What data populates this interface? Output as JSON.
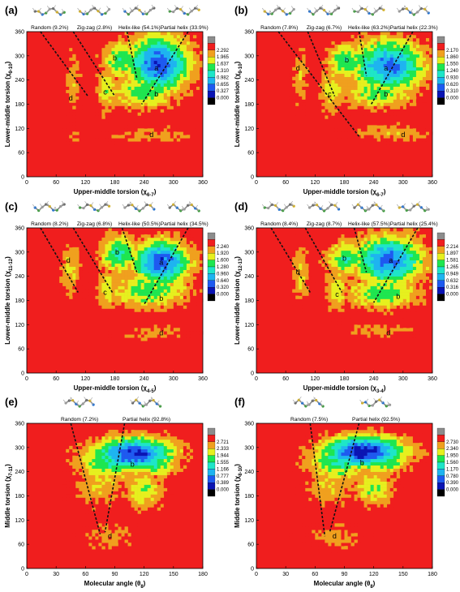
{
  "figure": {
    "panel_labels": [
      "(a)",
      "(b)",
      "(c)",
      "(d)",
      "(e)",
      "(f)"
    ]
  },
  "colors": {
    "level_colors": [
      "#000000",
      "#0a14b4",
      "#1e5af0",
      "#1eb4f0",
      "#1ee6c8",
      "#1ee650",
      "#e6f01e",
      "#f0a01e",
      "#f01e1e",
      "#8c8c8c"
    ],
    "plot_background": "#f01e1e",
    "divider": "#111111"
  },
  "chart_data": [
    {
      "panel": "(a)",
      "type": "heatmap",
      "xlabel": "Upper-middle torsion (χ6-7)",
      "ylabel": "Lower-middle torsion (χ9-10)",
      "xlim": [
        0,
        360
      ],
      "ylim": [
        0,
        360
      ],
      "xticks": [
        0,
        60,
        120,
        180,
        240,
        300,
        360
      ],
      "yticks": [
        0,
        60,
        120,
        180,
        240,
        300,
        360
      ],
      "colorbar": [
        "2.292",
        "1.965",
        "1.637",
        "1.310",
        "0.982",
        "0.655",
        "0.327",
        "0.000"
      ],
      "categories": [
        "Random (9.2%)",
        "Zig-zag (2.8%)",
        "Helix-like (54.1%)",
        "Partial helix (33.9%)"
      ],
      "regions": [
        {
          "label": "a",
          "x": 265,
          "y": 270
        },
        {
          "label": "b",
          "x": 180,
          "y": 295
        },
        {
          "label": "b",
          "x": 265,
          "y": 205
        },
        {
          "label": "c",
          "x": 160,
          "y": 210
        },
        {
          "label": "d",
          "x": 90,
          "y": 195
        },
        {
          "label": "d",
          "x": 255,
          "y": 105
        }
      ],
      "blobs": [
        {
          "x": 270,
          "y": 280,
          "rx": 65,
          "ry": 70,
          "h": 2.2
        },
        {
          "x": 195,
          "y": 290,
          "rx": 40,
          "ry": 45,
          "h": 1.3
        },
        {
          "x": 240,
          "y": 210,
          "rx": 65,
          "ry": 40,
          "h": 1.2
        },
        {
          "x": 165,
          "y": 220,
          "rx": 22,
          "ry": 60,
          "h": 0.9
        },
        {
          "x": 95,
          "y": 235,
          "rx": 14,
          "ry": 80,
          "h": 0.6
        },
        {
          "x": 255,
          "y": 105,
          "rx": 90,
          "ry": 20,
          "h": 0.5
        },
        {
          "x": 95,
          "y": 105,
          "rx": 16,
          "ry": 25,
          "h": 0.4
        }
      ],
      "dividers": [
        [
          [
            28,
            360
          ],
          [
            125,
            200
          ]
        ],
        [
          [
            95,
            360
          ],
          [
            180,
            200
          ]
        ],
        [
          [
            205,
            360
          ],
          [
            225,
            245
          ]
        ],
        [
          [
            330,
            360
          ],
          [
            235,
            180
          ]
        ]
      ]
    },
    {
      "panel": "(b)",
      "type": "heatmap",
      "xlabel": "Upper-middle torsion (χ6-7)",
      "ylabel": "Lower-middle torsion (χ9-10)",
      "xlim": [
        0,
        360
      ],
      "ylim": [
        0,
        360
      ],
      "xticks": [
        0,
        60,
        120,
        180,
        240,
        300,
        360
      ],
      "yticks": [
        0,
        60,
        120,
        180,
        240,
        300,
        360
      ],
      "colorbar": [
        "2.170",
        "1.860",
        "1.550",
        "1.240",
        "0.930",
        "0.620",
        "0.310",
        "0.000"
      ],
      "categories": [
        "Random (7.8%)",
        "Zig-zag (6.7%)",
        "Helix-like (63.2%)",
        "Partial helix (22.3%)"
      ],
      "regions": [
        {
          "label": "a",
          "x": 265,
          "y": 270
        },
        {
          "label": "b",
          "x": 185,
          "y": 290
        },
        {
          "label": "b",
          "x": 265,
          "y": 205
        },
        {
          "label": "c",
          "x": 150,
          "y": 205
        },
        {
          "label": "d",
          "x": 85,
          "y": 270
        },
        {
          "label": "d",
          "x": 300,
          "y": 105
        }
      ],
      "blobs": [
        {
          "x": 270,
          "y": 275,
          "rx": 75,
          "ry": 65,
          "h": 2.0
        },
        {
          "x": 185,
          "y": 285,
          "rx": 40,
          "ry": 45,
          "h": 1.3
        },
        {
          "x": 250,
          "y": 210,
          "rx": 75,
          "ry": 40,
          "h": 1.1
        },
        {
          "x": 155,
          "y": 215,
          "rx": 25,
          "ry": 60,
          "h": 0.9
        },
        {
          "x": 90,
          "y": 250,
          "rx": 15,
          "ry": 80,
          "h": 0.6
        },
        {
          "x": 280,
          "y": 110,
          "rx": 80,
          "ry": 22,
          "h": 0.6
        }
      ],
      "dividers": [
        [
          [
            45,
            360
          ],
          [
            210,
            100
          ]
        ],
        [
          [
            105,
            360
          ],
          [
            160,
            200
          ]
        ],
        [
          [
            210,
            360
          ],
          [
            225,
            250
          ]
        ],
        [
          [
            320,
            360
          ],
          [
            235,
            180
          ]
        ]
      ]
    },
    {
      "panel": "(c)",
      "type": "heatmap",
      "xlabel": "Upper-middle torsion (χ4-5)",
      "ylabel": "Lower-middle torsion (χ11-12)",
      "xlim": [
        0,
        360
      ],
      "ylim": [
        0,
        360
      ],
      "xticks": [
        0,
        60,
        120,
        180,
        240,
        300,
        360
      ],
      "yticks": [
        0,
        60,
        120,
        180,
        240,
        300,
        360
      ],
      "colorbar": [
        "2.240",
        "1.920",
        "1.600",
        "1.280",
        "0.960",
        "0.640",
        "0.320",
        "0.000"
      ],
      "categories": [
        "Random (8.2%)",
        "Zig-zag (6.8%)",
        "Helix-like (50.5%)",
        "Partial helix (34.5%)"
      ],
      "regions": [
        {
          "label": "a",
          "x": 275,
          "y": 275
        },
        {
          "label": "b",
          "x": 185,
          "y": 300
        },
        {
          "label": "b",
          "x": 275,
          "y": 185
        },
        {
          "label": "c",
          "x": 160,
          "y": 200
        },
        {
          "label": "d",
          "x": 85,
          "y": 280
        },
        {
          "label": "d",
          "x": 275,
          "y": 100
        }
      ],
      "blobs": [
        {
          "x": 275,
          "y": 275,
          "rx": 60,
          "ry": 55,
          "h": 2.2
        },
        {
          "x": 190,
          "y": 295,
          "rx": 40,
          "ry": 45,
          "h": 1.4
        },
        {
          "x": 250,
          "y": 205,
          "rx": 80,
          "ry": 45,
          "h": 1.2
        },
        {
          "x": 165,
          "y": 210,
          "rx": 22,
          "ry": 50,
          "h": 0.9
        },
        {
          "x": 90,
          "y": 260,
          "rx": 20,
          "ry": 60,
          "h": 0.8
        },
        {
          "x": 260,
          "y": 100,
          "rx": 85,
          "ry": 18,
          "h": 0.5
        }
      ],
      "dividers": [
        [
          [
            28,
            360
          ],
          [
            105,
            200
          ]
        ],
        [
          [
            95,
            360
          ],
          [
            175,
            200
          ]
        ],
        [
          [
            195,
            360
          ],
          [
            225,
            250
          ]
        ],
        [
          [
            330,
            360
          ],
          [
            240,
            170
          ]
        ]
      ]
    },
    {
      "panel": "(d)",
      "type": "heatmap",
      "xlabel": "Upper-middle torsion (χ3-4)",
      "ylabel": "Lower-middle torsion (χ12-13)",
      "xlim": [
        0,
        360
      ],
      "ylim": [
        0,
        360
      ],
      "xticks": [
        0,
        60,
        120,
        180,
        240,
        300,
        360
      ],
      "yticks": [
        0,
        60,
        120,
        180,
        240,
        300,
        360
      ],
      "colorbar": [
        "2.214",
        "1.897",
        "1.581",
        "1.265",
        "0.949",
        "0.632",
        "0.316",
        "0.000"
      ],
      "categories": [
        "Random (8.4%)",
        "Zig-zag (8.7%)",
        "Helix-like (57.5%)",
        "Partial helix (25.4%)"
      ],
      "regions": [
        {
          "label": "a",
          "x": 275,
          "y": 280
        },
        {
          "label": "b",
          "x": 180,
          "y": 285
        },
        {
          "label": "b",
          "x": 290,
          "y": 190
        },
        {
          "label": "c",
          "x": 165,
          "y": 195
        },
        {
          "label": "d",
          "x": 85,
          "y": 250
        },
        {
          "label": "d",
          "x": 270,
          "y": 100
        }
      ],
      "blobs": [
        {
          "x": 270,
          "y": 280,
          "rx": 70,
          "ry": 60,
          "h": 2.1
        },
        {
          "x": 185,
          "y": 285,
          "rx": 40,
          "ry": 45,
          "h": 1.3
        },
        {
          "x": 260,
          "y": 200,
          "rx": 75,
          "ry": 40,
          "h": 1.2
        },
        {
          "x": 165,
          "y": 205,
          "rx": 22,
          "ry": 55,
          "h": 0.9
        },
        {
          "x": 90,
          "y": 250,
          "rx": 18,
          "ry": 70,
          "h": 0.7
        },
        {
          "x": 255,
          "y": 105,
          "rx": 85,
          "ry": 18,
          "h": 0.5
        }
      ],
      "dividers": [
        [
          [
            30,
            360
          ],
          [
            110,
            200
          ]
        ],
        [
          [
            100,
            360
          ],
          [
            175,
            200
          ]
        ],
        [
          [
            200,
            360
          ],
          [
            225,
            250
          ]
        ],
        [
          [
            330,
            360
          ],
          [
            240,
            175
          ]
        ]
      ]
    },
    {
      "panel": "(e)",
      "type": "heatmap",
      "xlabel": "Molecular angle (θ8)",
      "ylabel": "Middle torsion (χ7-11)",
      "xlim": [
        0,
        180
      ],
      "ylim": [
        0,
        360
      ],
      "xticks": [
        0,
        30,
        60,
        90,
        120,
        150,
        180
      ],
      "yticks": [
        0,
        60,
        120,
        180,
        240,
        300,
        360
      ],
      "colorbar": [
        "2.721",
        "2.333",
        "1.944",
        "1.555",
        "1.166",
        "0.777",
        "0.389",
        "0.000"
      ],
      "categories": [
        "Random (7.2%)",
        "Partial helix (92.8%)"
      ],
      "regions": [
        {
          "label": "b",
          "x": 108,
          "y": 258
        },
        {
          "label": "d",
          "x": 85,
          "y": 80
        }
      ],
      "blobs": [
        {
          "x": 110,
          "y": 285,
          "rx": 40,
          "ry": 40,
          "h": 2.4
        },
        {
          "x": 85,
          "y": 270,
          "rx": 32,
          "ry": 50,
          "h": 1.4
        },
        {
          "x": 130,
          "y": 260,
          "rx": 25,
          "ry": 30,
          "h": 1.3
        },
        {
          "x": 120,
          "y": 195,
          "rx": 20,
          "ry": 45,
          "h": 1.0
        },
        {
          "x": 75,
          "y": 210,
          "rx": 25,
          "ry": 55,
          "h": 0.7
        },
        {
          "x": 85,
          "y": 80,
          "rx": 28,
          "ry": 35,
          "h": 0.5
        }
      ],
      "dividers": [
        [
          [
            45,
            360
          ],
          [
            75,
            85
          ]
        ],
        [
          [
            100,
            360
          ],
          [
            80,
            90
          ]
        ]
      ]
    },
    {
      "panel": "(f)",
      "type": "heatmap",
      "xlabel": "Molecular angle (θ8)",
      "ylabel": "Middle torsion (χ8-10)",
      "xlim": [
        0,
        180
      ],
      "ylim": [
        0,
        360
      ],
      "xticks": [
        0,
        30,
        60,
        90,
        120,
        150,
        180
      ],
      "yticks": [
        0,
        60,
        120,
        180,
        240,
        300,
        360
      ],
      "colorbar": [
        "2.730",
        "2.340",
        "1.950",
        "1.560",
        "1.170",
        "0.780",
        "0.390",
        "0.000"
      ],
      "categories": [
        "Random (7.5%)",
        "Partial helix (92.5%)"
      ],
      "regions": [
        {
          "label": "b",
          "x": 108,
          "y": 262
        },
        {
          "label": "d",
          "x": 80,
          "y": 80
        }
      ],
      "blobs": [
        {
          "x": 110,
          "y": 290,
          "rx": 42,
          "ry": 40,
          "h": 2.5
        },
        {
          "x": 85,
          "y": 270,
          "rx": 32,
          "ry": 50,
          "h": 1.4
        },
        {
          "x": 130,
          "y": 265,
          "rx": 25,
          "ry": 30,
          "h": 1.3
        },
        {
          "x": 120,
          "y": 200,
          "rx": 20,
          "ry": 45,
          "h": 1.0
        },
        {
          "x": 75,
          "y": 210,
          "rx": 25,
          "ry": 55,
          "h": 0.7
        },
        {
          "x": 80,
          "y": 80,
          "rx": 30,
          "ry": 35,
          "h": 0.5
        }
      ],
      "dividers": [
        [
          [
            55,
            360
          ],
          [
            70,
            80
          ]
        ],
        [
          [
            105,
            360
          ],
          [
            75,
            90
          ]
        ]
      ]
    }
  ]
}
